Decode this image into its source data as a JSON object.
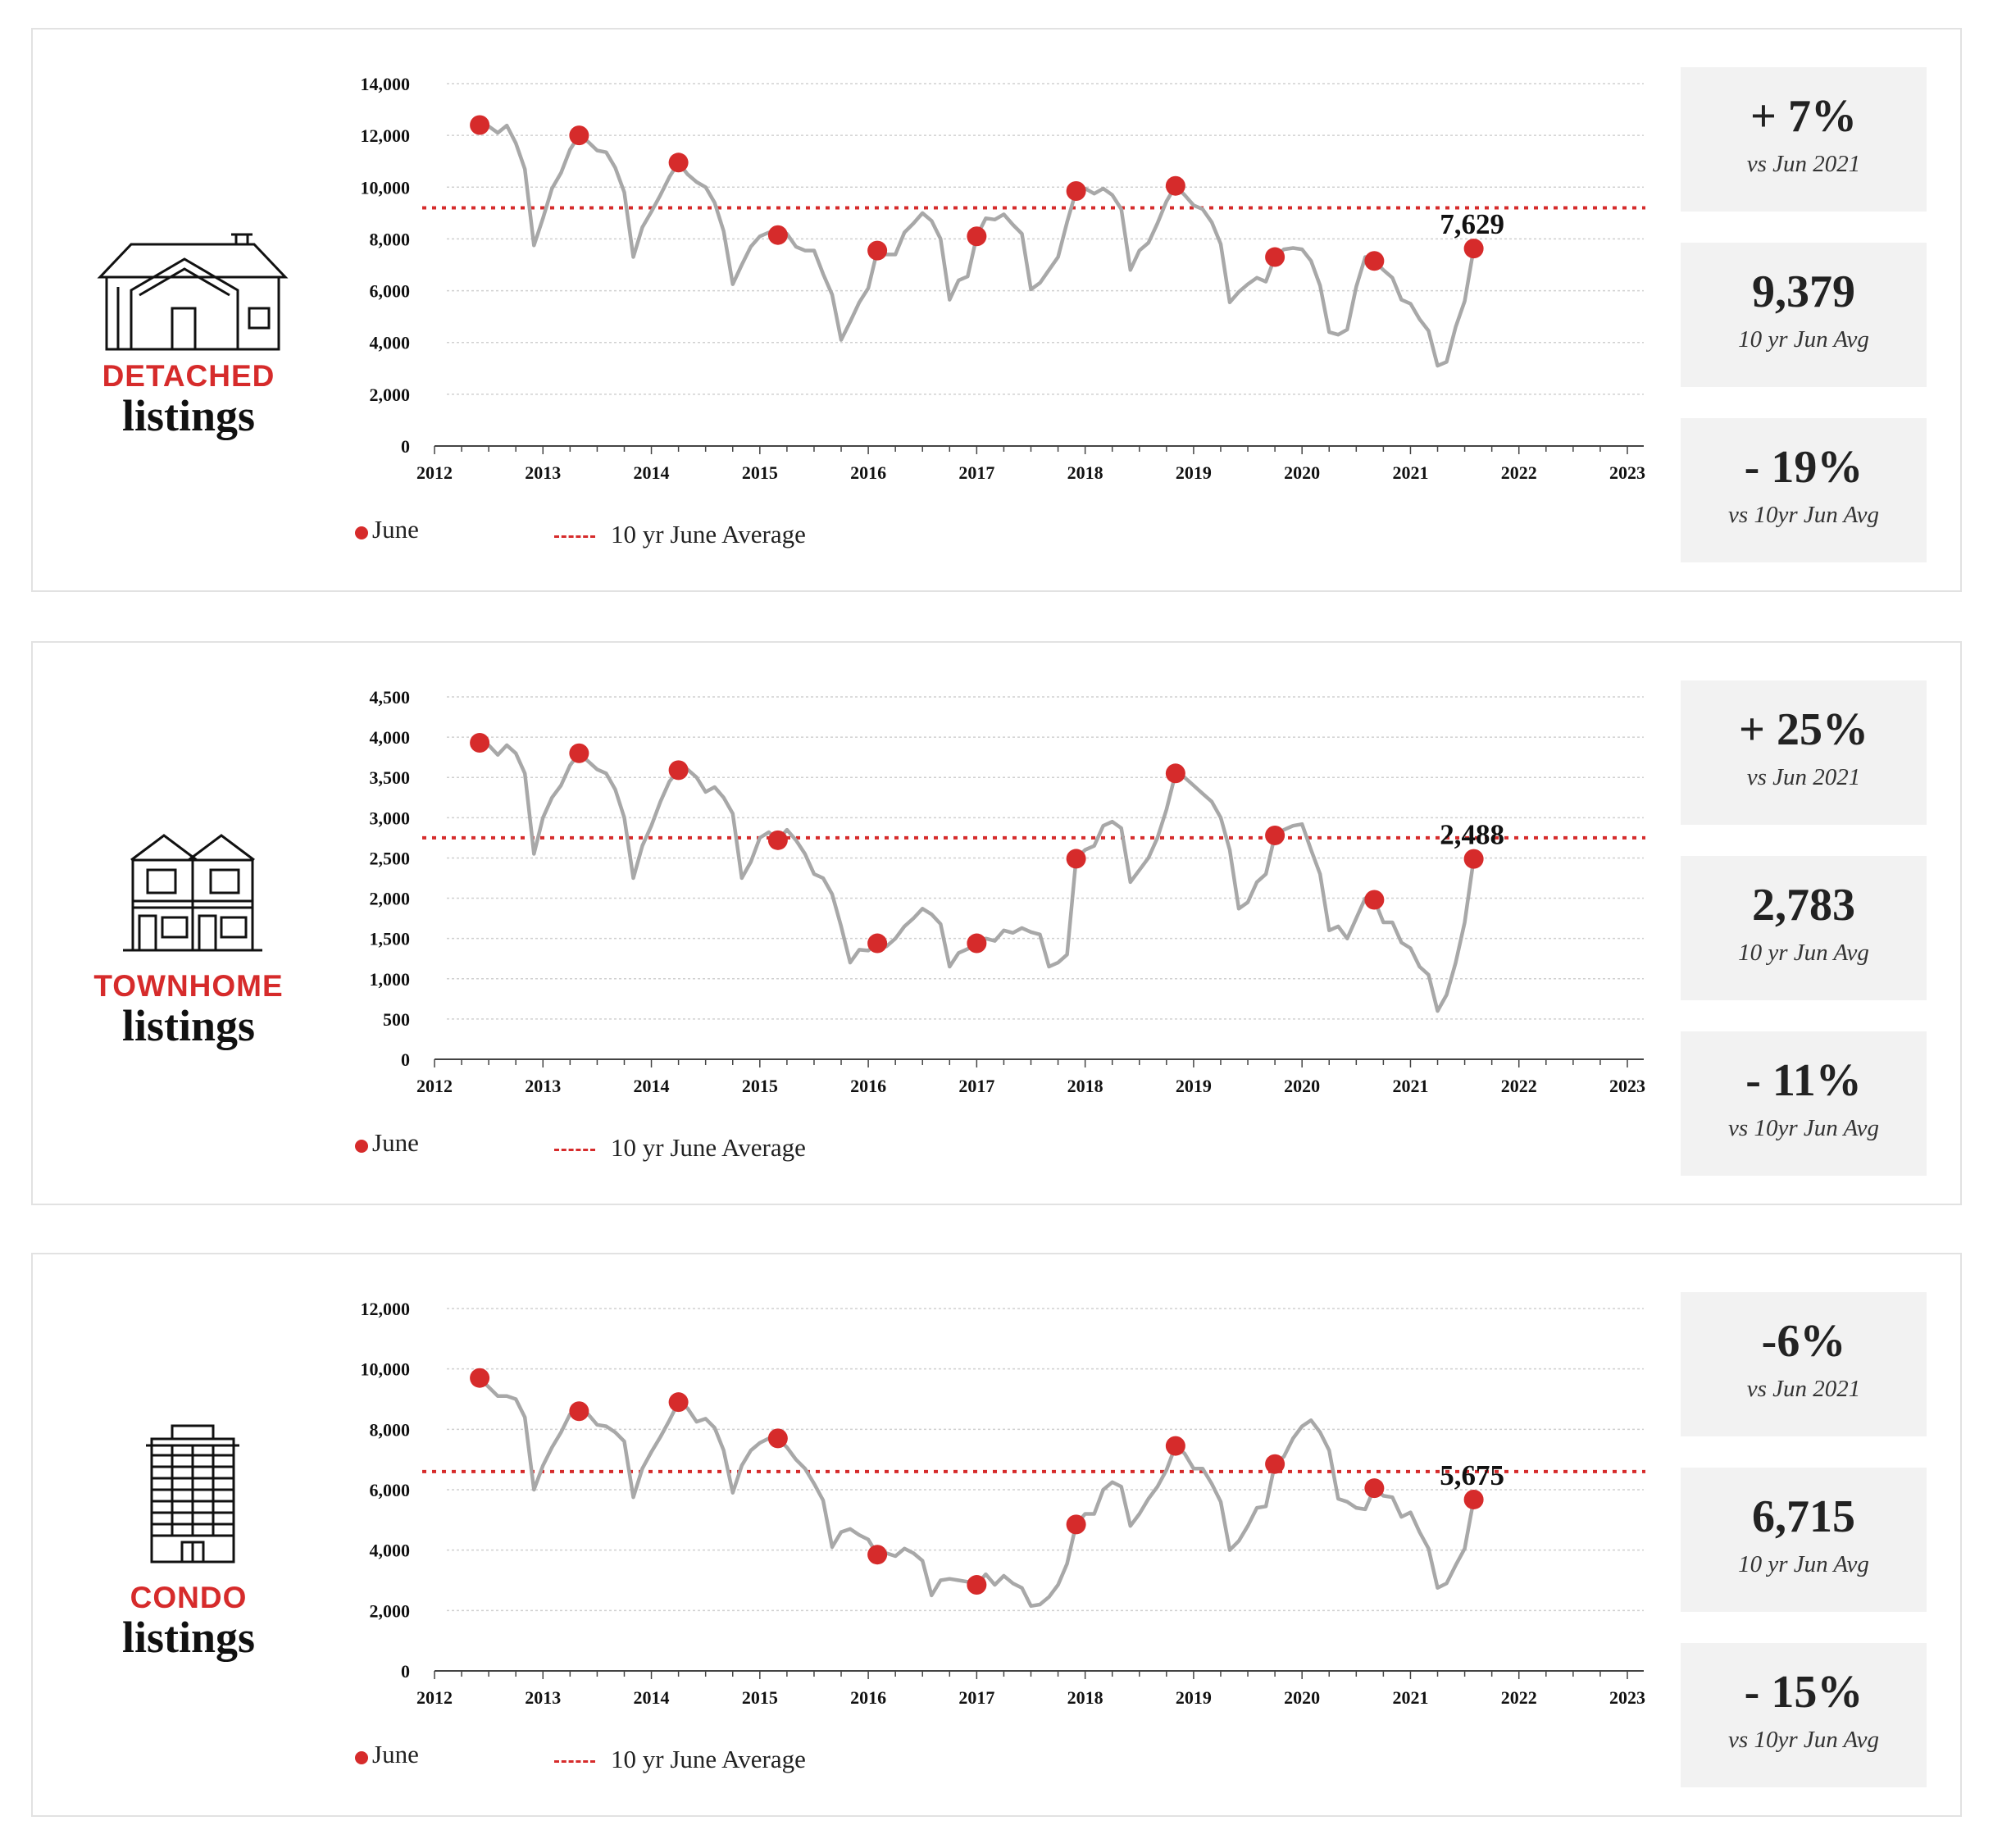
{
  "legend": {
    "dot_label": "June",
    "line_label": "10 yr June Average"
  },
  "colors": {
    "accent": "#d62b2b",
    "series": "#a8a8a8",
    "grid": "#d0d0d0",
    "stat_bg": "#f2f2f2"
  },
  "panels": [
    {
      "category": "DETACHED",
      "subtitle": "listings",
      "icon": "detached-house-icon",
      "stats": [
        {
          "value": "+ 7%",
          "label": "vs Jun 2021"
        },
        {
          "value": "9,379",
          "label": "10 yr  Jun Avg"
        },
        {
          "value": "- 19%",
          "label": "vs 10yr Jun Avg"
        }
      ],
      "chart_data": {
        "type": "line",
        "yticks": [
          "14,000",
          "12,000",
          "10,000",
          "8,000",
          "6,000",
          "4,000",
          "2,000",
          "0"
        ],
        "ytick_values": [
          14000,
          12000,
          10000,
          8000,
          6000,
          4000,
          2000,
          0
        ],
        "ylim": [
          0,
          14000
        ],
        "xticks": [
          "2012",
          "2013",
          "2014",
          "2015",
          "2016",
          "2017",
          "2018",
          "2019",
          "2020",
          "2021",
          "2022",
          "2023"
        ],
        "average": 9200,
        "last_label": "7,629",
        "june_values": [
          12400,
          12000,
          10950,
          8150,
          7550,
          8100,
          9850,
          10050,
          7300,
          7150,
          7629
        ],
        "series": [
          [
            12400,
            12350,
            12100,
            12380,
            11700,
            10700,
            7750,
            8800,
            9950,
            10550,
            11450
          ],
          [
            12000,
            11750,
            11420,
            11350,
            10750,
            9800,
            7300,
            8450,
            9050,
            9700,
            10400
          ],
          [
            10950,
            10500,
            10200,
            10000,
            9400,
            8300,
            6250,
            7000,
            7700,
            8100,
            8250
          ],
          [
            8150,
            8200,
            7700,
            7550,
            7550,
            6650,
            5850,
            4100,
            4800,
            5550,
            6100
          ],
          [
            7550,
            7400,
            7400,
            8250,
            8600,
            9000,
            8700,
            8000,
            5650,
            6400,
            6550
          ],
          [
            8100,
            8800,
            8750,
            8950,
            8550,
            8200,
            6050,
            6300,
            6800,
            7300,
            8650
          ],
          [
            9850,
            9950,
            9750,
            9950,
            9700,
            9150,
            6800,
            7550,
            7850,
            8600,
            9450
          ],
          [
            10050,
            9700,
            9300,
            9150,
            8650,
            7800,
            5550,
            5950,
            6250,
            6500,
            6350
          ],
          [
            7300,
            7600,
            7650,
            7600,
            7150,
            6200,
            4400,
            4300,
            4500,
            6150,
            7300
          ],
          [
            7150,
            6800,
            6500,
            5650,
            5500,
            4900,
            4450,
            3100,
            3250,
            4600,
            5600
          ],
          [
            7629
          ]
        ]
      }
    },
    {
      "category": "TOWNHOME",
      "subtitle": "listings",
      "icon": "townhome-icon",
      "stats": [
        {
          "value": "+ 25%",
          "label": "vs Jun 2021"
        },
        {
          "value": "2,783",
          "label": "10 yr  Jun Avg"
        },
        {
          "value": "- 11%",
          "label": "vs 10yr Jun Avg"
        }
      ],
      "chart_data": {
        "type": "line",
        "yticks": [
          "4,500",
          "4,000",
          "3,500",
          "3,000",
          "2,500",
          "2,000",
          "1,500",
          "1,000",
          "500",
          "0"
        ],
        "ytick_values": [
          4500,
          4000,
          3500,
          3000,
          2500,
          2000,
          1500,
          1000,
          500,
          0
        ],
        "ylim": [
          0,
          4500
        ],
        "xticks": [
          "2012",
          "2013",
          "2014",
          "2015",
          "2016",
          "2017",
          "2018",
          "2019",
          "2020",
          "2021",
          "2022",
          "2023"
        ],
        "average": 2750,
        "last_label": "2,488",
        "june_values": [
          3930,
          3800,
          3590,
          2720,
          1440,
          1440,
          2490,
          3550,
          2780,
          1980,
          2488
        ],
        "series": [
          [
            3930,
            3900,
            3780,
            3900,
            3800,
            3550,
            2550,
            3000,
            3250,
            3400,
            3650
          ],
          [
            3800,
            3700,
            3600,
            3550,
            3350,
            3000,
            2250,
            2650,
            2900,
            3200,
            3450
          ],
          [
            3590,
            3600,
            3500,
            3320,
            3380,
            3250,
            3050,
            2250,
            2450,
            2750,
            2820
          ],
          [
            2720,
            2850,
            2720,
            2550,
            2300,
            2250,
            2050,
            1650,
            1200,
            1360,
            1350
          ],
          [
            1440,
            1400,
            1500,
            1650,
            1750,
            1870,
            1800,
            1680,
            1150,
            1320,
            1370
          ],
          [
            1440,
            1500,
            1470,
            1600,
            1570,
            1630,
            1580,
            1550,
            1150,
            1200,
            1300
          ],
          [
            2490,
            2600,
            2650,
            2900,
            2950,
            2870,
            2200,
            2350,
            2500,
            2750,
            3100
          ],
          [
            3550,
            3500,
            3400,
            3300,
            3200,
            3000,
            2600,
            1870,
            1950,
            2200,
            2300
          ],
          [
            2780,
            2850,
            2900,
            2920,
            2600,
            2300,
            1600,
            1650,
            1500,
            1750,
            2000
          ],
          [
            1980,
            1700,
            1700,
            1450,
            1380,
            1150,
            1050,
            600,
            800,
            1200,
            1700
          ],
          [
            2488
          ]
        ]
      }
    },
    {
      "category": "CONDO",
      "subtitle": "listings",
      "icon": "condo-building-icon",
      "stats": [
        {
          "value": "-6%",
          "label": "vs Jun 2021"
        },
        {
          "value": "6,715",
          "label": "10 yr  Jun Avg"
        },
        {
          "value": "- 15%",
          "label": "vs 10yr Jun Avg"
        }
      ],
      "chart_data": {
        "type": "line",
        "yticks": [
          "12,000",
          "10,000",
          "8,000",
          "6,000",
          "4,000",
          "2,000",
          "0"
        ],
        "ytick_values": [
          12000,
          10000,
          8000,
          6000,
          4000,
          2000,
          0
        ],
        "ylim": [
          0,
          12000
        ],
        "xticks": [
          "2012",
          "2013",
          "2014",
          "2015",
          "2016",
          "2017",
          "2018",
          "2019",
          "2020",
          "2021",
          "2022",
          "2023"
        ],
        "average": 6600,
        "last_label": "5,675",
        "june_values": [
          9700,
          8600,
          8900,
          7700,
          3850,
          2850,
          4850,
          7450,
          6850,
          6050,
          5675
        ],
        "series": [
          [
            9700,
            9400,
            9100,
            9100,
            9000,
            8400,
            6000,
            6800,
            7400,
            7900,
            8500
          ],
          [
            8600,
            8500,
            8150,
            8100,
            7900,
            7600,
            5750,
            6700,
            7250,
            7750,
            8300
          ],
          [
            8900,
            8700,
            8250,
            8350,
            8050,
            7300,
            5900,
            6800,
            7300,
            7550,
            7700
          ],
          [
            7700,
            7400,
            7000,
            6700,
            6200,
            5650,
            4100,
            4600,
            4700,
            4500,
            4350
          ],
          [
            3850,
            3900,
            3800,
            4050,
            3900,
            3650,
            2500,
            3000,
            3050,
            3000,
            2950
          ],
          [
            2850,
            3200,
            2850,
            3150,
            2900,
            2750,
            2150,
            2200,
            2450,
            2850,
            3550
          ],
          [
            4850,
            5200,
            5200,
            6000,
            6250,
            6100,
            4800,
            5200,
            5700,
            6100,
            6650
          ],
          [
            7450,
            7200,
            6700,
            6700,
            6200,
            5600,
            4000,
            4300,
            4800,
            5400,
            5450
          ],
          [
            6850,
            7100,
            7700,
            8100,
            8300,
            7900,
            7300,
            5700,
            5600,
            5400,
            5350
          ],
          [
            6050,
            5800,
            5750,
            5100,
            5250,
            4600,
            4050,
            2750,
            2900,
            3500,
            4050
          ],
          [
            5675
          ]
        ]
      }
    }
  ]
}
